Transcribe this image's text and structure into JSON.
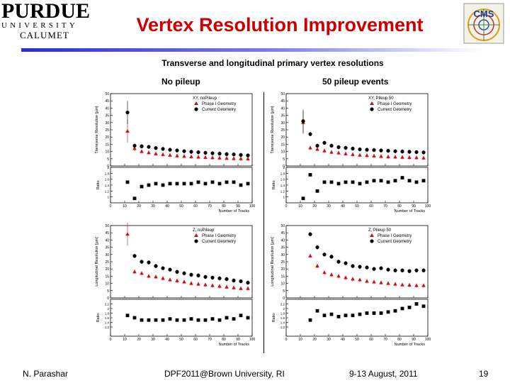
{
  "header": {
    "logo_line1": "PURDUE",
    "logo_line2": "UNIVERSITY",
    "logo_line3": "CALUMET",
    "cms_logo_text": "CMS",
    "title": "Vertex Resolution Improvement"
  },
  "figure": {
    "title": "Transverse and longitudinal primary vertex resolutions",
    "col_left": "No pileup",
    "col_right": "50 pileup events",
    "legend_phase1": "Phase I Geometry",
    "legend_current": "Current Geometry"
  },
  "colors": {
    "phase1": "#cc1111",
    "current": "#000000",
    "title": "#cc0000"
  },
  "chart_data": [
    {
      "type": "scatter",
      "title": "XY, noPileup",
      "xlabel": "Number of Tracks",
      "ylabel": "Transverse Resolution [μm]",
      "ratio_ylabel": "Ratio",
      "xlim": [
        0,
        100
      ],
      "ylim": [
        0,
        50
      ],
      "ratio_ylim": [
        0.8,
        2
      ],
      "ratio_ticks": [
        "2",
        "1.8",
        "1.6",
        "1.4",
        "1.2",
        "1"
      ],
      "series": [
        {
          "name": "Phase I Geometry",
          "marker": "triangle",
          "x": [
            12,
            17,
            22,
            27,
            32,
            37,
            42,
            47,
            52,
            57,
            62,
            67,
            72,
            77,
            82,
            87,
            92,
            97
          ],
          "y": [
            24,
            12,
            10,
            9.2,
            8.4,
            7.9,
            7.4,
            7.0,
            6.7,
            6.4,
            6.1,
            5.9,
            5.7,
            5.5,
            5.3,
            5.1,
            5.0,
            4.9
          ]
        },
        {
          "name": "Current Geometry",
          "marker": "circle",
          "x": [
            12,
            17,
            22,
            27,
            32,
            37,
            42,
            47,
            52,
            57,
            62,
            67,
            72,
            77,
            82,
            87,
            92,
            97
          ],
          "y": [
            37,
            14,
            13.6,
            13.2,
            12.4,
            11.8,
            11.2,
            10.7,
            10.2,
            9.8,
            9.5,
            9.1,
            8.8,
            8.5,
            8.2,
            8.0,
            7.6,
            7.3
          ]
        }
      ],
      "ratio": {
        "x": [
          12,
          17,
          22,
          27,
          32,
          37,
          42,
          47,
          52,
          57,
          62,
          67,
          72,
          77,
          82,
          87,
          92,
          97
        ],
        "y": [
          1.5,
          0.95,
          1.35,
          1.4,
          1.45,
          1.4,
          1.45,
          1.45,
          1.45,
          1.45,
          1.5,
          1.45,
          1.5,
          1.45,
          1.5,
          1.5,
          1.4,
          1.45
        ]
      }
    },
    {
      "type": "scatter",
      "title": "XY, Pileup 50",
      "xlabel": "Number of Tracks",
      "ylabel": "Transverse Resolution [μm]",
      "ratio_ylabel": "Ratio",
      "xlim": [
        0,
        100
      ],
      "ylim": [
        0,
        50
      ],
      "ratio_ylim": [
        0.8,
        2
      ],
      "ratio_ticks": [
        "2",
        "1.8",
        "1.6",
        "1.4",
        "1.2",
        "1"
      ],
      "series": [
        {
          "name": "Phase I Geometry",
          "marker": "triangle",
          "x": [
            12,
            17,
            22,
            27,
            32,
            37,
            42,
            47,
            52,
            57,
            62,
            67,
            72,
            77,
            82,
            87,
            92,
            97
          ],
          "y": [
            30,
            12.5,
            11.5,
            10.5,
            9.5,
            9,
            8.4,
            7.9,
            7.5,
            7.2,
            6.9,
            6.6,
            6.3,
            6.2,
            6,
            5.8,
            5.7,
            5.5
          ]
        },
        {
          "name": "Current Geometry",
          "marker": "circle",
          "x": [
            12,
            17,
            22,
            27,
            32,
            37,
            42,
            47,
            52,
            57,
            62,
            67,
            72,
            77,
            82,
            87,
            92,
            97
          ],
          "y": [
            31,
            22,
            14,
            16,
            14,
            13,
            12.5,
            12,
            11.5,
            11.2,
            11,
            10.7,
            10.5,
            10.2,
            10,
            9.8,
            9.6,
            9.4
          ]
        }
      ],
      "ratio": {
        "x": [
          12,
          17,
          22,
          27,
          32,
          37,
          42,
          47,
          52,
          57,
          62,
          67,
          72,
          77,
          82,
          87,
          92,
          97
        ],
        "y": [
          0.95,
          1.75,
          1.2,
          1.5,
          1.5,
          1.45,
          1.5,
          1.5,
          1.45,
          1.5,
          1.55,
          1.55,
          1.5,
          1.55,
          1.65,
          1.55,
          1.5,
          1.55
        ]
      }
    },
    {
      "type": "scatter",
      "title": "Z, noPileup",
      "xlabel": "Number of Tracks",
      "ylabel": "Longitudinal Resolution [μm]",
      "ratio_ylabel": "Ratio",
      "xlim": [
        0,
        100
      ],
      "ylim": [
        0,
        50
      ],
      "ratio_ylim": [
        0.8,
        2.4
      ],
      "ratio_ticks": [
        "2.2",
        "2",
        "1.8",
        "1.6",
        "1.4",
        "1.2"
      ],
      "series": [
        {
          "name": "Phase I Geometry",
          "marker": "triangle",
          "x": [
            12,
            17,
            22,
            27,
            32,
            37,
            42,
            47,
            52,
            57,
            62,
            67,
            72,
            77,
            82,
            87,
            92,
            97
          ],
          "y": [
            44,
            18,
            17,
            15,
            14.5,
            13.5,
            12.5,
            11.8,
            11,
            10,
            9.5,
            9,
            8.5,
            8,
            7.5,
            7,
            6.5,
            6.5
          ]
        },
        {
          "name": "Current Geometry",
          "marker": "circle",
          "x": [
            12,
            17,
            22,
            27,
            32,
            37,
            42,
            47,
            52,
            57,
            62,
            67,
            72,
            77,
            82,
            87,
            92,
            97
          ],
          "y": [
            null,
            29,
            25,
            24.5,
            22,
            20.5,
            19.5,
            18,
            17,
            16,
            15.5,
            14.5,
            14,
            13.5,
            13,
            12,
            11.5,
            10.5
          ]
        }
      ],
      "ratio": {
        "x": [
          12,
          17,
          22,
          27,
          32,
          37,
          42,
          47,
          52,
          57,
          62,
          67,
          72,
          77,
          82,
          87,
          92,
          97
        ],
        "y": [
          1.7,
          1.6,
          1.5,
          1.5,
          1.5,
          1.5,
          1.55,
          1.5,
          1.5,
          1.55,
          1.5,
          1.5,
          1.55,
          1.5,
          1.6,
          1.55,
          1.7,
          1.6
        ]
      }
    },
    {
      "type": "scatter",
      "title": "Z, Pileup 50",
      "xlabel": "Number of Tracks",
      "ylabel": "Longitudinal Resolution [μm]",
      "ratio_ylabel": "Ratio",
      "xlim": [
        0,
        100
      ],
      "ylim": [
        0,
        50
      ],
      "ratio_ylim": [
        0.8,
        2.4
      ],
      "ratio_ticks": [
        "2.2",
        "2",
        "1.8",
        "1.6",
        "1.4",
        "1.2"
      ],
      "series": [
        {
          "name": "Phase I Geometry",
          "marker": "triangle",
          "x": [
            17,
            22,
            27,
            32,
            37,
            42,
            47,
            52,
            57,
            62,
            67,
            72,
            77,
            82,
            87,
            92,
            97
          ],
          "y": [
            29,
            22,
            17.5,
            16,
            15,
            14,
            13,
            12.5,
            11.5,
            11,
            10.5,
            10,
            9.5,
            9,
            8.8,
            8.5,
            8.5
          ]
        },
        {
          "name": "Current Geometry",
          "marker": "circle",
          "x": [
            17,
            22,
            27,
            32,
            37,
            42,
            47,
            52,
            57,
            62,
            67,
            72,
            77,
            82,
            87,
            92,
            97
          ],
          "y": [
            44,
            35,
            30,
            28.5,
            25,
            24,
            22,
            21.5,
            21,
            20,
            20.5,
            19.5,
            19,
            19,
            18.5,
            19,
            19
          ]
        }
      ],
      "ratio": {
        "x": [
          17,
          22,
          27,
          32,
          37,
          42,
          47,
          52,
          57,
          62,
          67,
          72,
          77,
          82,
          87,
          92,
          97
        ],
        "y": [
          1.5,
          1.9,
          1.7,
          1.75,
          1.65,
          1.7,
          1.7,
          1.75,
          1.8,
          1.8,
          1.8,
          1.85,
          1.9,
          2.0,
          2.05,
          2.2,
          2.1
        ]
      }
    }
  ],
  "footer": {
    "author": "N. Parashar",
    "conference": "DPF2011@Brown University, RI",
    "date": "9-13 August, 2011",
    "page": "19"
  }
}
